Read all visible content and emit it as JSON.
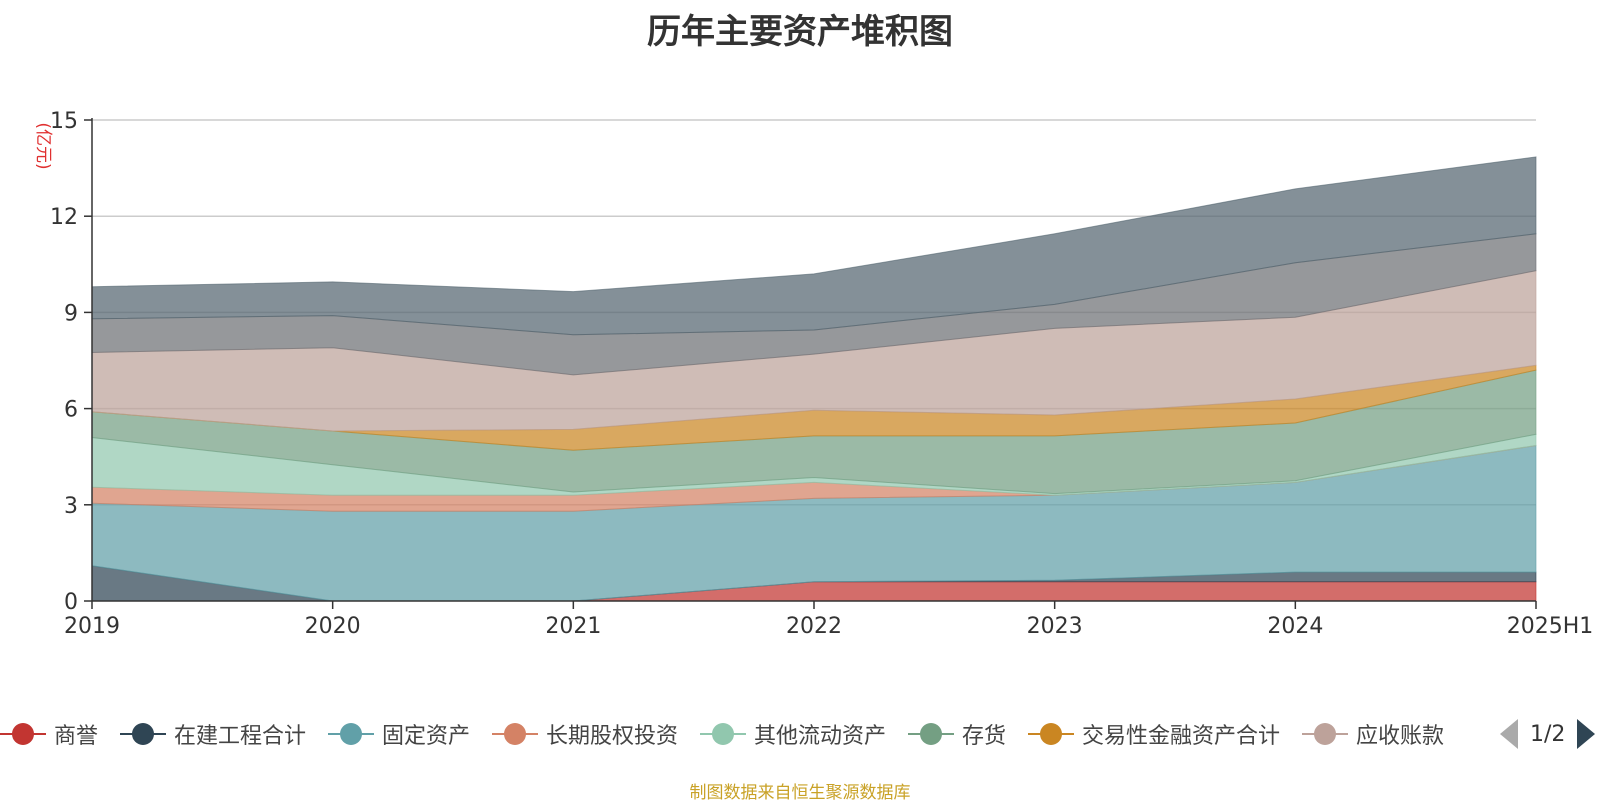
{
  "chart_data": {
    "type": "area",
    "stacked": true,
    "title": "历年主要资产堆积图",
    "ylabel": "(亿元)",
    "ylim": [
      0,
      15
    ],
    "yticks": [
      "0",
      "3",
      "6",
      "9",
      "12",
      "15"
    ],
    "categories": [
      "2019",
      "2020",
      "2021",
      "2022",
      "2023",
      "2024",
      "2025H1"
    ],
    "grid": true,
    "legend_position": "bottom",
    "series": [
      {
        "name": "商誉",
        "color": "#c23531",
        "values": [
          0,
          0,
          0,
          0.6,
          0.6,
          0.6,
          0.6
        ]
      },
      {
        "name": "在建工程合计",
        "color": "#2f4554",
        "values": [
          1.1,
          0,
          0,
          0,
          0.05,
          0.3,
          0.3
        ]
      },
      {
        "name": "固定资产",
        "color": "#61a0a8",
        "values": [
          1.95,
          2.8,
          2.8,
          2.6,
          2.65,
          2.8,
          3.95
        ]
      },
      {
        "name": "长期股权投资",
        "color": "#d48265",
        "values": [
          0.5,
          0.5,
          0.5,
          0.5,
          0,
          0,
          0
        ]
      },
      {
        "name": "其他流动资产",
        "color": "#91c7ae",
        "values": [
          1.55,
          0.95,
          0.1,
          0.15,
          0.05,
          0.05,
          0.35
        ]
      },
      {
        "name": "存货",
        "color": "#749f83",
        "values": [
          0.8,
          1.05,
          1.3,
          1.3,
          1.8,
          1.8,
          2.0
        ]
      },
      {
        "name": "交易性金融资产合计",
        "color": "#ca8622",
        "values": [
          0,
          0,
          0.65,
          0.8,
          0.65,
          0.75,
          0.15
        ]
      },
      {
        "name": "应收账款",
        "color": "#bda29a",
        "values": [
          1.85,
          2.6,
          1.7,
          1.75,
          2.7,
          2.55,
          2.95
        ]
      },
      {
        "name": "",
        "color": "#6e7074",
        "values": [
          1.05,
          1.0,
          1.25,
          0.75,
          0.75,
          1.7,
          1.15
        ]
      },
      {
        "name": "",
        "color": "#546570",
        "values": [
          1.0,
          1.05,
          1.35,
          1.75,
          2.2,
          2.3,
          2.4
        ]
      }
    ]
  },
  "legend": {
    "items": [
      "商誉",
      "在建工程合计",
      "固定资产",
      "长期股权投资",
      "其他流动资产",
      "存货",
      "交易性金融资产合计",
      "应收账款"
    ],
    "page_text": "1/2"
  },
  "source_text": "制图数据来自恒生聚源数据库"
}
